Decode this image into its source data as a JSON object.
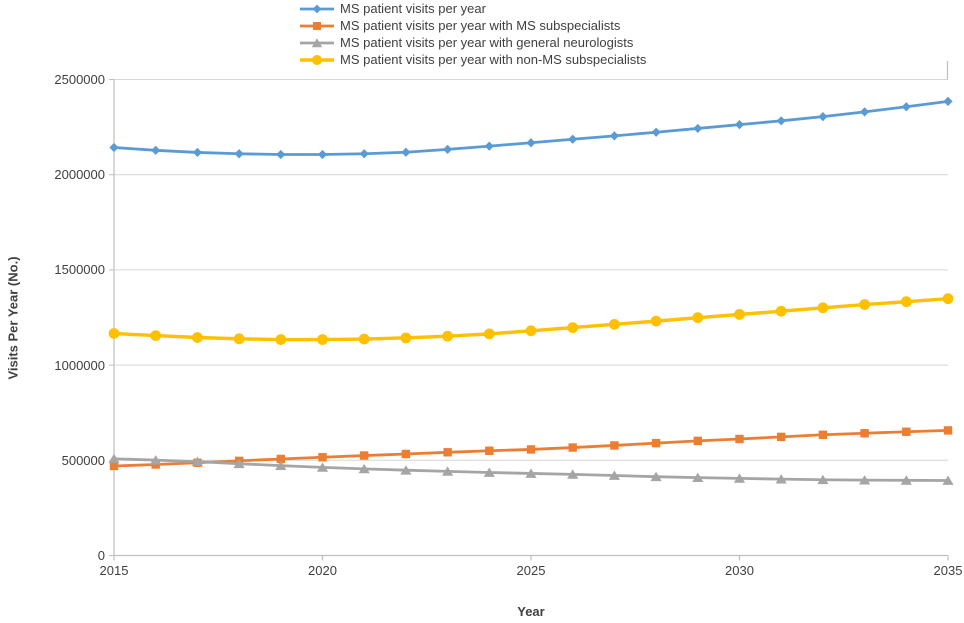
{
  "chart_data": {
    "type": "line",
    "title": "",
    "xlabel": "Year",
    "ylabel": "Visits Per Year (No.)",
    "x": [
      2015,
      2016,
      2017,
      2018,
      2019,
      2020,
      2021,
      2022,
      2023,
      2024,
      2025,
      2026,
      2027,
      2028,
      2029,
      2030,
      2031,
      2032,
      2033,
      2034,
      2035
    ],
    "xlim": [
      2015,
      2035
    ],
    "ylim": [
      0,
      2500000
    ],
    "xticks": [
      "2015",
      "2020",
      "2025",
      "2030",
      "2035"
    ],
    "yticks": [
      "0",
      "500000",
      "1000000",
      "1500000",
      "2000000",
      "2500000"
    ],
    "grid": "horizontal",
    "legend_position": "top",
    "style": {
      "grid_color": "#D6D6D6",
      "axis_color": "#BFBFBF",
      "text_color": "#404040"
    },
    "series": [
      {
        "name": "MS patient visits per year",
        "color": "#5B9BD5",
        "marker": "diamond",
        "line_width": 2.8,
        "values": [
          2143000,
          2128000,
          2117000,
          2110000,
          2106000,
          2106000,
          2110000,
          2118000,
          2133000,
          2150000,
          2168000,
          2186000,
          2204000,
          2223000,
          2243000,
          2263000,
          2283000,
          2305000,
          2330000,
          2357000,
          2385000
        ]
      },
      {
        "name": "MS patient visits per year with MS subspecialists",
        "color": "#ED7D31",
        "marker": "square",
        "line_width": 2.8,
        "values": [
          470000,
          478000,
          487000,
          497000,
          507000,
          516000,
          525000,
          533000,
          542000,
          550000,
          557000,
          567000,
          578000,
          590000,
          602000,
          612000,
          623000,
          634000,
          642000,
          650000,
          657000
        ]
      },
      {
        "name": "MS patient visits per year with general neurologists",
        "color": "#A5A5A5",
        "marker": "triangle",
        "line_width": 2.8,
        "values": [
          508000,
          501000,
          493000,
          482000,
          472000,
          463000,
          455000,
          448000,
          442000,
          436000,
          431000,
          426000,
          420000,
          414000,
          409000,
          405000,
          401000,
          398000,
          396000,
          395000,
          394000
        ]
      },
      {
        "name": "MS patient visits per year with non-MS subspecialists",
        "color": "#FFC000",
        "marker": "circle",
        "line_width": 3.4,
        "values": [
          1166000,
          1155000,
          1145000,
          1138000,
          1134000,
          1134000,
          1137000,
          1143000,
          1152000,
          1164000,
          1180000,
          1197000,
          1214000,
          1231000,
          1249000,
          1266000,
          1283000,
          1301000,
          1318000,
          1333000,
          1349000
        ]
      }
    ]
  }
}
